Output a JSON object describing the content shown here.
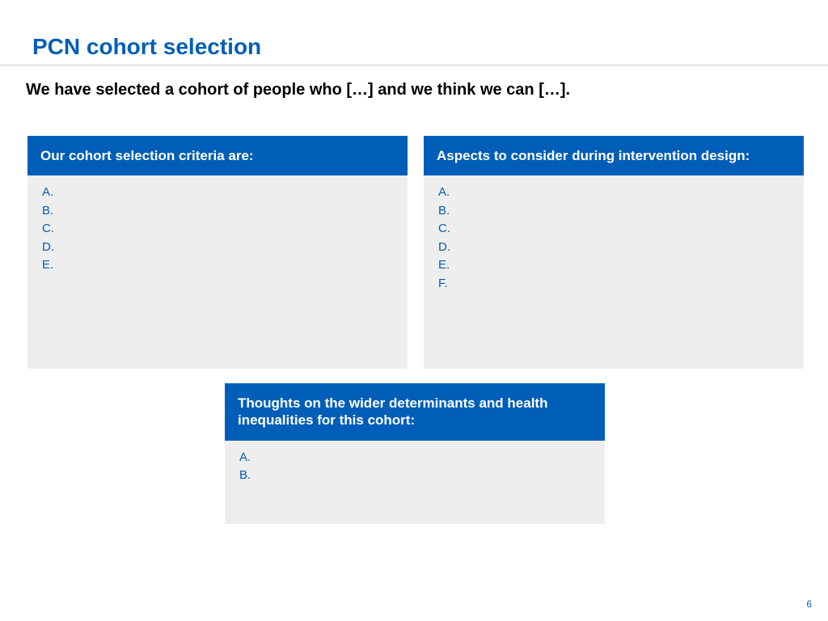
{
  "colors": {
    "accent": "#005eb8",
    "card_bg": "#eeeeee",
    "divider": "#c8c8c8",
    "background": "#ffffff",
    "text_black": "#000000"
  },
  "title": "PCN cohort selection",
  "subtitle": "We have selected a cohort of people who […] and we think we can […].",
  "cards": {
    "criteria": {
      "header": "Our cohort selection criteria are:",
      "items": [
        "A.",
        "B.",
        "C.",
        "D.",
        "E."
      ]
    },
    "aspects": {
      "header": "Aspects to consider during intervention design:",
      "items": [
        "A.",
        "B.",
        "C.",
        "D.",
        "E.",
        "F."
      ]
    },
    "thoughts": {
      "header": "Thoughts on the wider determinants and health inequalities for this cohort:",
      "items": [
        "A.",
        "B."
      ]
    }
  },
  "page_number": "6",
  "typography": {
    "title_fontsize": 28,
    "subtitle_fontsize": 20,
    "header_fontsize": 17,
    "body_fontsize": 15,
    "pagenum_fontsize": 12
  }
}
